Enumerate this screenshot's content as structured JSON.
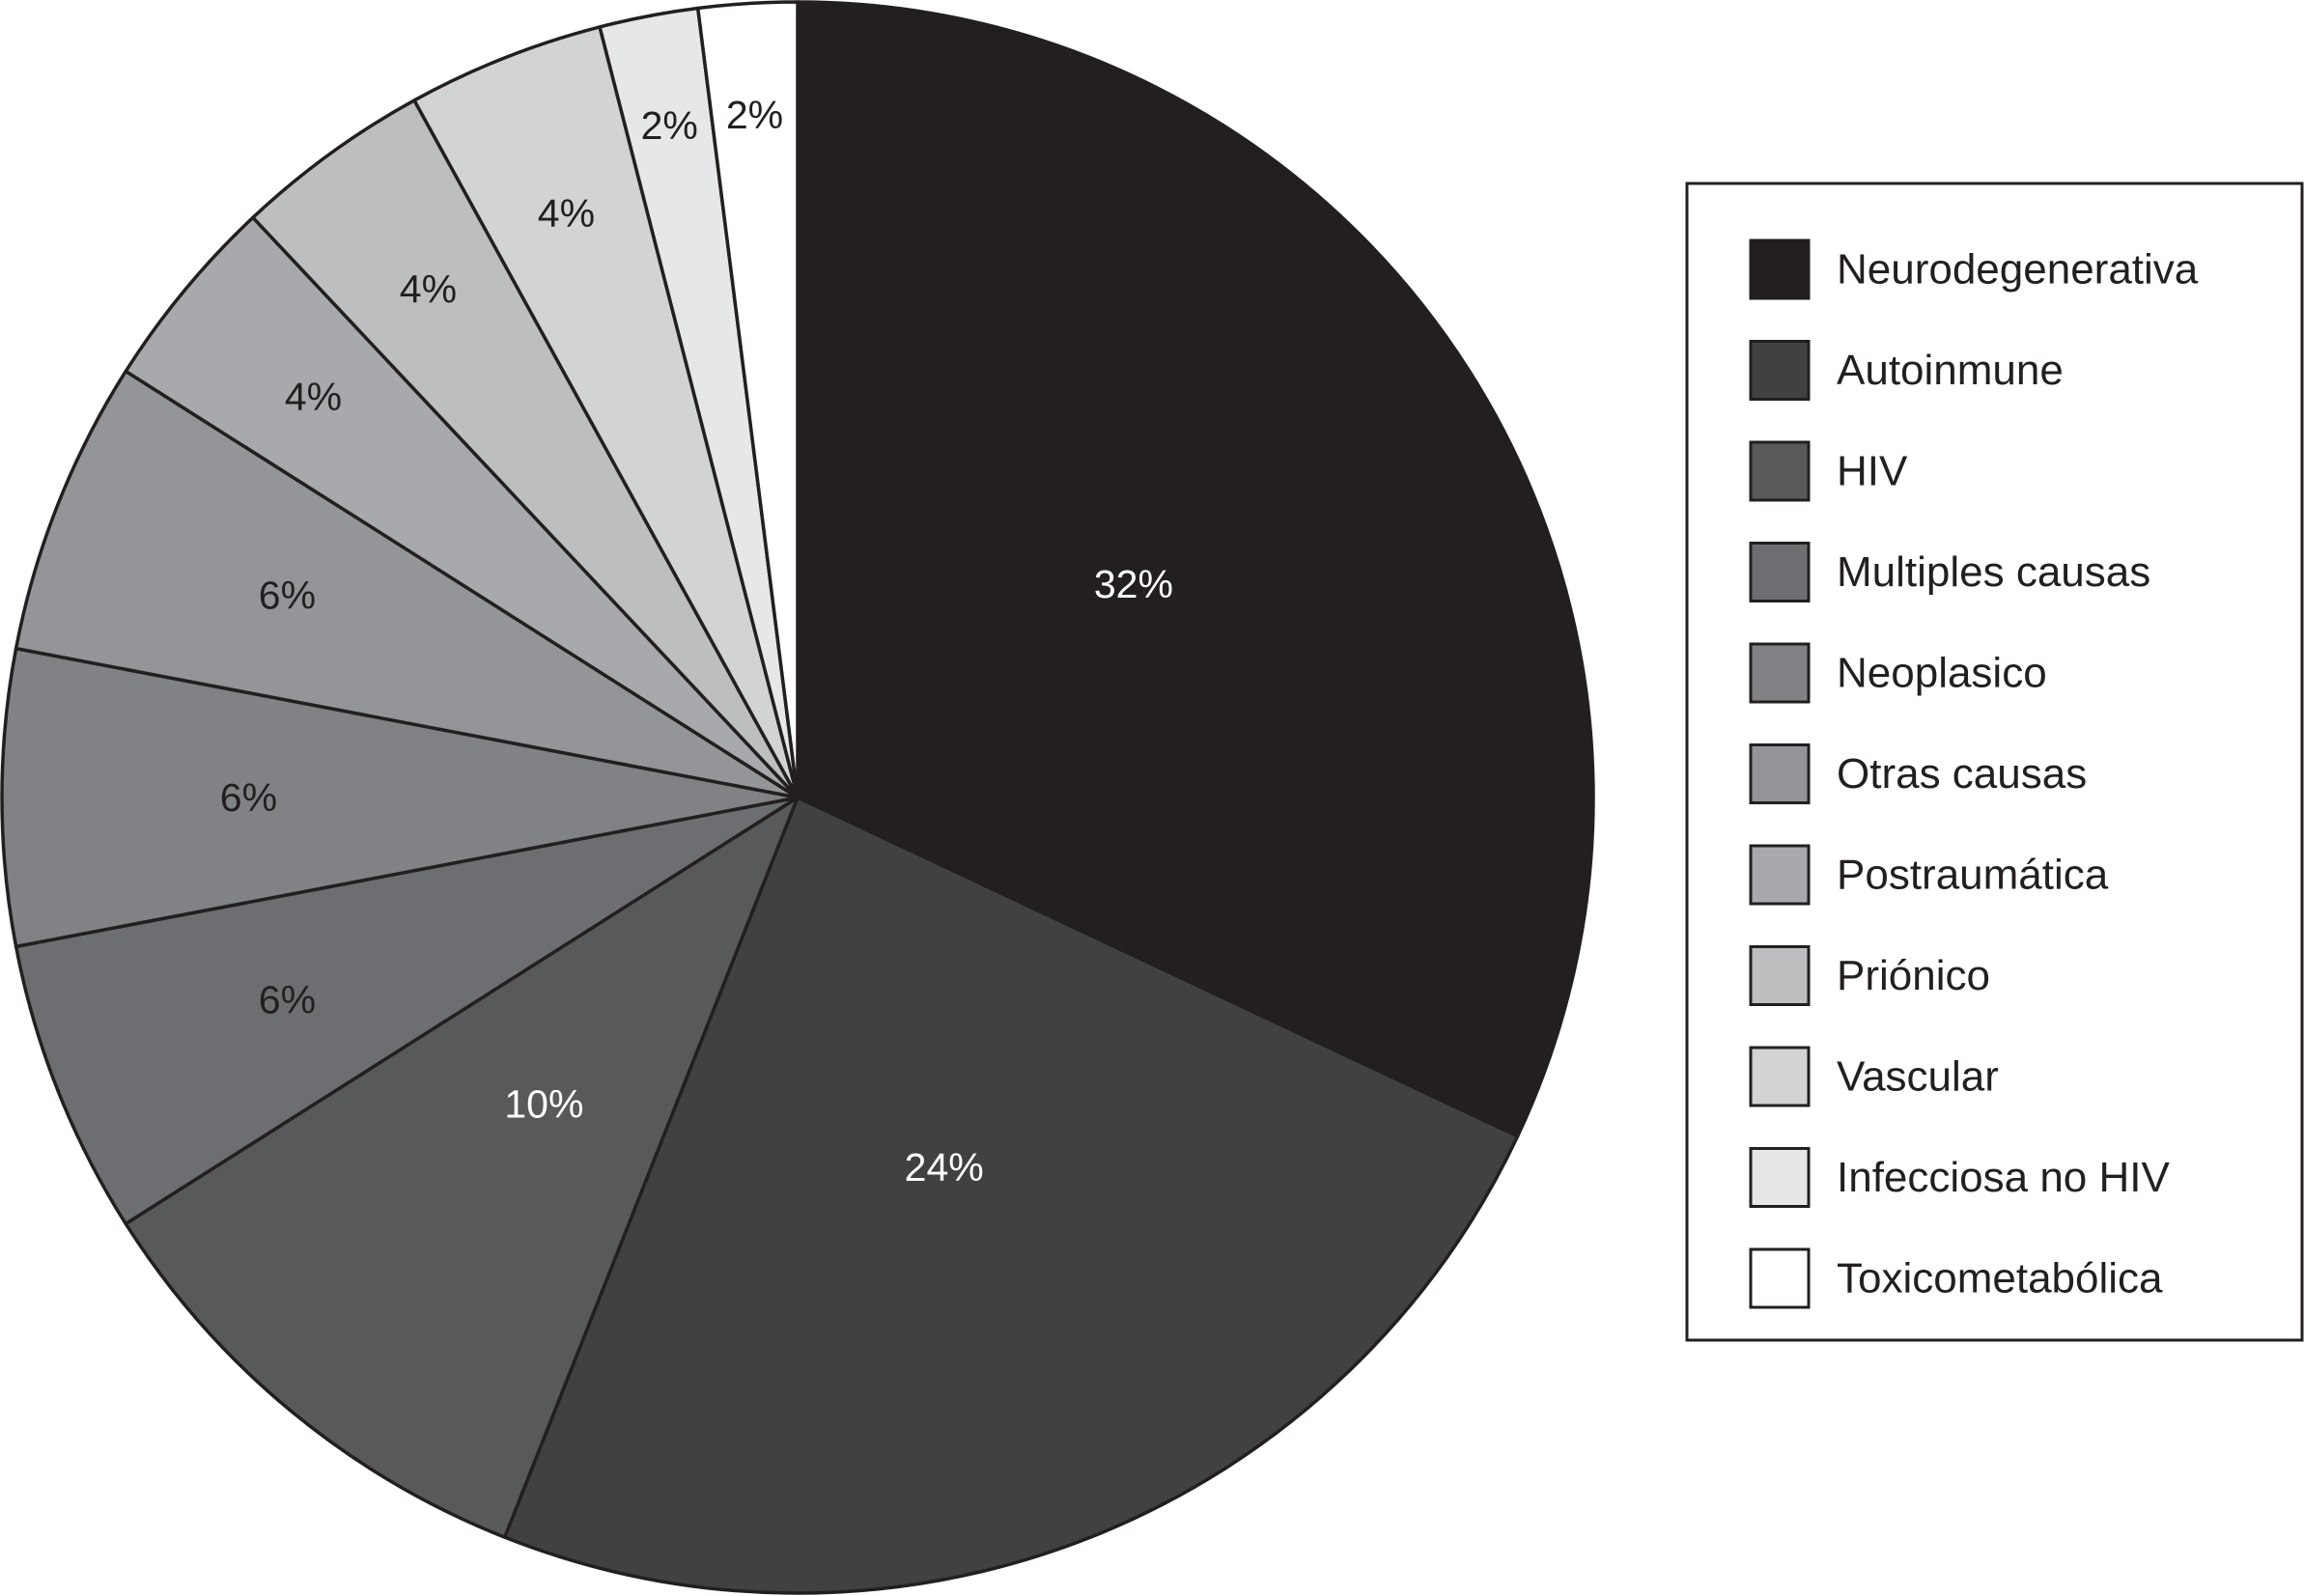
{
  "chart_data": {
    "type": "pie",
    "title": "",
    "start_angle_deg": 0,
    "direction": "clockwise",
    "legend_position": "right",
    "slices": [
      {
        "label": "Neurodegenerativa",
        "value": 32,
        "display": "32%",
        "color": "#231f20",
        "text_color": "#ffffff"
      },
      {
        "label": "Autoinmune",
        "value": 24,
        "display": "24%",
        "color": "#414142",
        "text_color": "#ffffff"
      },
      {
        "label": "HIV",
        "value": 10,
        "display": "10%",
        "color": "#58595b",
        "text_color": "#ffffff"
      },
      {
        "label": "Multiples causas",
        "value": 6,
        "display": "6%",
        "color": "#6d6e71",
        "text_color": "#231f20"
      },
      {
        "label": "Neoplasico",
        "value": 6,
        "display": "6%",
        "color": "#808285",
        "text_color": "#231f20"
      },
      {
        "label": "Otras causas",
        "value": 6,
        "display": "6%",
        "color": "#939598",
        "text_color": "#231f20"
      },
      {
        "label": "Postraumática",
        "value": 4,
        "display": "4%",
        "color": "#a7a9ac",
        "text_color": "#231f20"
      },
      {
        "label": "Priónico",
        "value": 4,
        "display": "4%",
        "color": "#bcbec0",
        "text_color": "#231f20"
      },
      {
        "label": "Vascular",
        "value": 4,
        "display": "4%",
        "color": "#d1d3d4",
        "text_color": "#231f20"
      },
      {
        "label": "Infecciosa no HIV",
        "value": 2,
        "display": "2%",
        "color": "#e6e7e8",
        "text_color": "#231f20"
      },
      {
        "label": "Toxicometabólica",
        "value": 2,
        "display": "2%",
        "color": "#ffffff",
        "text_color": "#231f20"
      }
    ]
  }
}
